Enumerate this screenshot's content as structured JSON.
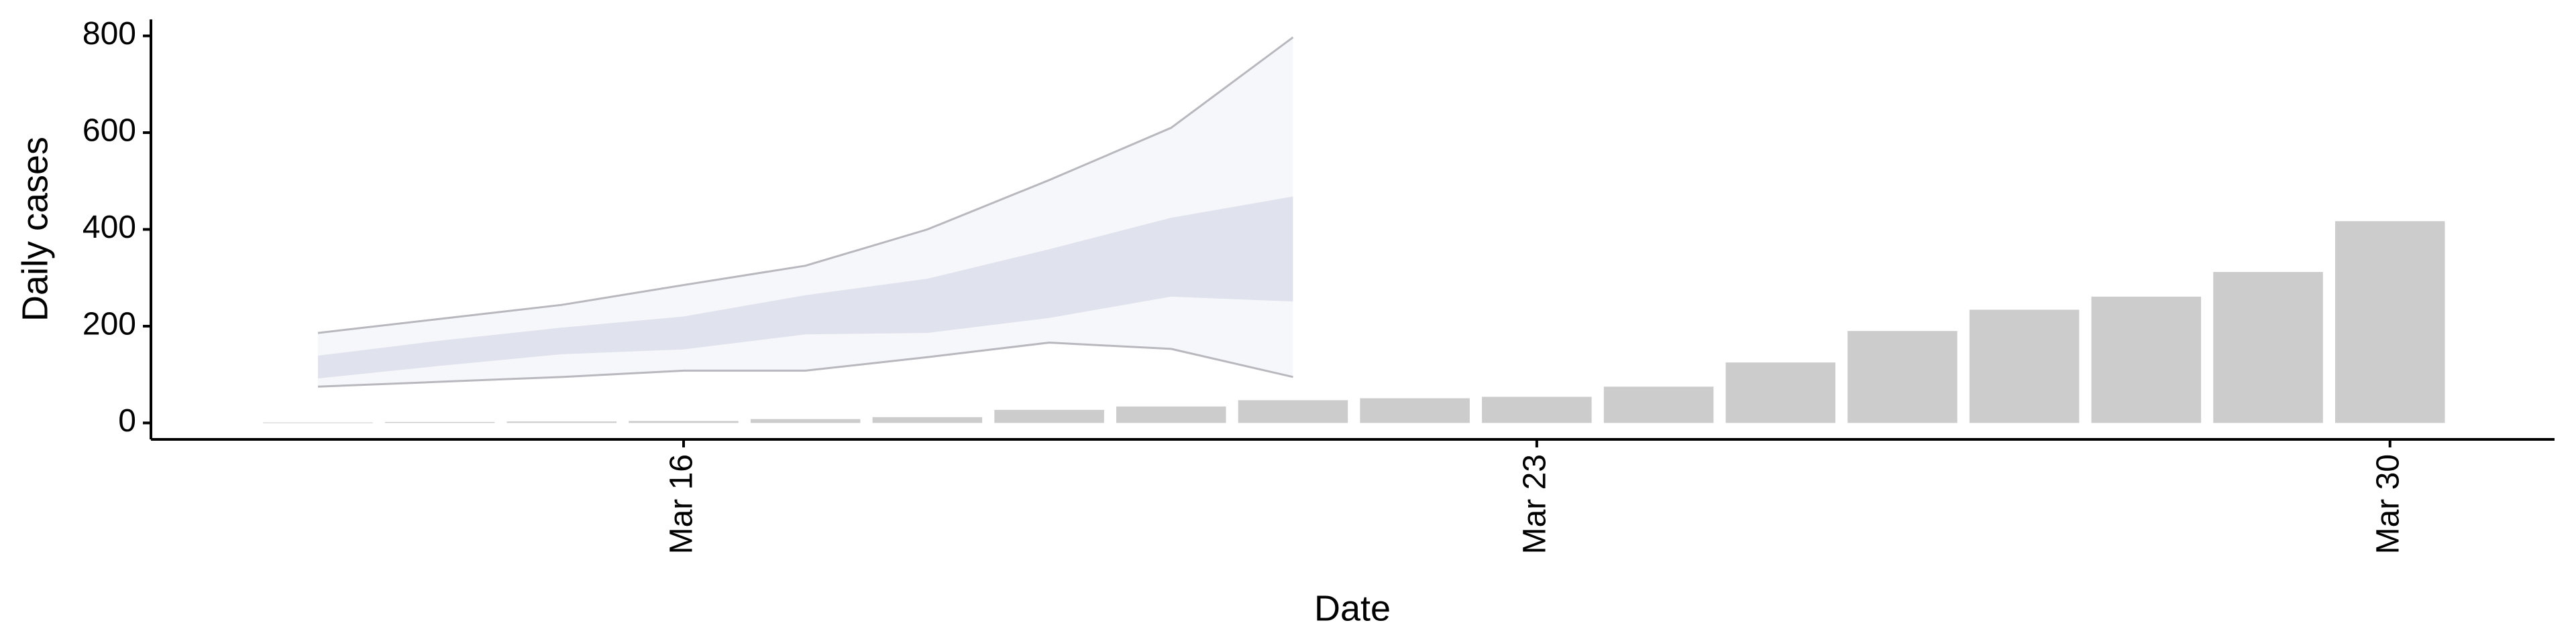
{
  "chart_data": {
    "type": "bar",
    "x_label": "Date",
    "y_label": "Daily cases",
    "x": [
      13,
      14,
      15,
      16,
      17,
      18,
      19,
      20,
      21,
      22,
      23,
      24,
      25,
      26,
      27,
      28,
      29,
      30
    ],
    "values": [
      1,
      2,
      3,
      4,
      8,
      12,
      27,
      34,
      47,
      51,
      54,
      75,
      125,
      190,
      234,
      261,
      312,
      417
    ],
    "color": "#cccccc",
    "band_x": [
      13,
      14,
      15,
      16,
      17,
      18,
      19,
      20,
      21
    ],
    "bands": [
      {
        "lower": [
          75,
          85,
          95,
          108,
          108,
          136,
          166,
          153,
          95
        ],
        "upper": [
          186,
          215,
          244,
          285,
          325,
          400,
          502,
          610,
          797
        ],
        "color": "#f3f4f8",
        "edge_color": "#a8a6ae"
      },
      {
        "lower": [
          92,
          118,
          142,
          152,
          183,
          186,
          217,
          261,
          251
        ],
        "upper": [
          139,
          170,
          197,
          220,
          264,
          298,
          359,
          424,
          468
        ],
        "color": "#d8dbe8"
      }
    ],
    "xlim": [
      11.63,
      31.35
    ],
    "xticks": [
      {
        "value": 16,
        "label": "Mar 16"
      },
      {
        "value": 23,
        "label": "Mar 23"
      },
      {
        "value": 30,
        "label": "Mar 30"
      }
    ],
    "ylim": [
      -34,
      834
    ],
    "yticks": [
      0,
      200,
      400,
      600,
      800
    ]
  }
}
